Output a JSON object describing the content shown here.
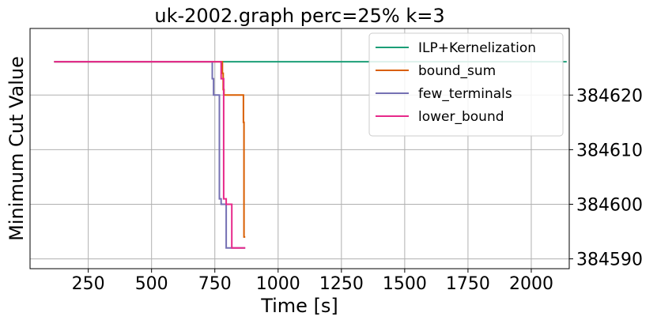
{
  "chart_data": {
    "type": "line",
    "title": "uk-2002.graph perc=25% k=3",
    "xlabel": "Time [s]",
    "ylabel": "Minimum Cut Value",
    "xlim": [
      20,
      2150
    ],
    "ylim": [
      384588.2,
      384632.2
    ],
    "x_ticks": [
      250,
      500,
      750,
      1000,
      1250,
      1500,
      1750,
      2000
    ],
    "x_tick_labels": [
      "250",
      "500",
      "750",
      "1000",
      "1250",
      "1500",
      "1750",
      "2000"
    ],
    "y_ticks": [
      384590,
      384600,
      384610,
      384620
    ],
    "y_tick_labels": [
      "384590",
      "384600",
      "384610",
      "384620"
    ],
    "y_axis_side": "right",
    "grid": true,
    "legend_position": "top-right",
    "series": [
      {
        "name": "ILP+Kernelization",
        "color": "#1b9e77",
        "points": [
          [
            115,
            384626.1
          ],
          [
            2140,
            384626.1
          ]
        ]
      },
      {
        "name": "bound_sum",
        "color": "#d95f02",
        "points": [
          [
            115,
            384626.1
          ],
          [
            780,
            384626.1
          ],
          [
            780,
            384624
          ],
          [
            783,
            384624
          ],
          [
            783,
            384621
          ],
          [
            786,
            384621
          ],
          [
            786,
            384620
          ],
          [
            863,
            384620
          ],
          [
            863,
            384615
          ],
          [
            865,
            384615
          ],
          [
            865,
            384594
          ],
          [
            870,
            384594
          ]
        ]
      },
      {
        "name": "few_terminals",
        "color": "#7570b3",
        "points": [
          [
            115,
            384626.1
          ],
          [
            740,
            384626.1
          ],
          [
            740,
            384623
          ],
          [
            745,
            384623
          ],
          [
            745,
            384620
          ],
          [
            768,
            384620
          ],
          [
            768,
            384601
          ],
          [
            775,
            384601
          ],
          [
            775,
            384600
          ],
          [
            795,
            384600
          ],
          [
            795,
            384592
          ],
          [
            870,
            384592
          ]
        ]
      },
      {
        "name": "lower_bound",
        "color": "#e7298a",
        "points": [
          [
            115,
            384626.1
          ],
          [
            775,
            384626.1
          ],
          [
            775,
            384623
          ],
          [
            785,
            384623
          ],
          [
            785,
            384601
          ],
          [
            795,
            384601
          ],
          [
            795,
            384600
          ],
          [
            817,
            384600
          ],
          [
            817,
            384592
          ],
          [
            870,
            384592
          ]
        ]
      }
    ]
  }
}
